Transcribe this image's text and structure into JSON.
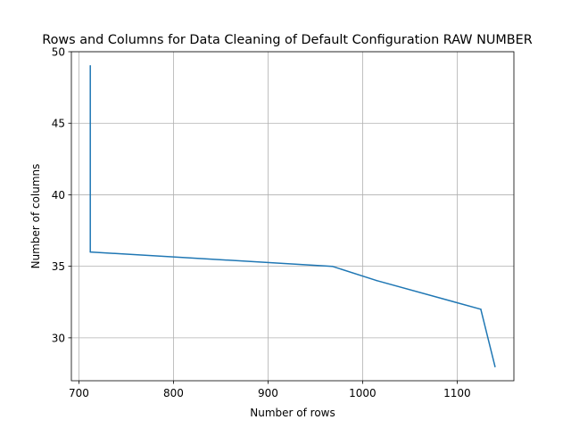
{
  "chart_data": {
    "type": "line",
    "title": "Rows and Columns for Data Cleaning of Default Configuration RAW NUMBER",
    "xlabel": "Number of rows",
    "ylabel": "Number of columns",
    "xlim": [
      692,
      1160
    ],
    "ylim": [
      27.0,
      50.0
    ],
    "xticks": [
      700,
      800,
      900,
      1000,
      1100
    ],
    "yticks": [
      30,
      35,
      40,
      45,
      50
    ],
    "grid": true,
    "color": "#1f77b4",
    "series": [
      {
        "x": [
          712,
          712,
          968,
          1015,
          1125,
          1140
        ],
        "y": [
          49,
          36,
          35,
          34,
          32,
          28
        ]
      }
    ]
  }
}
